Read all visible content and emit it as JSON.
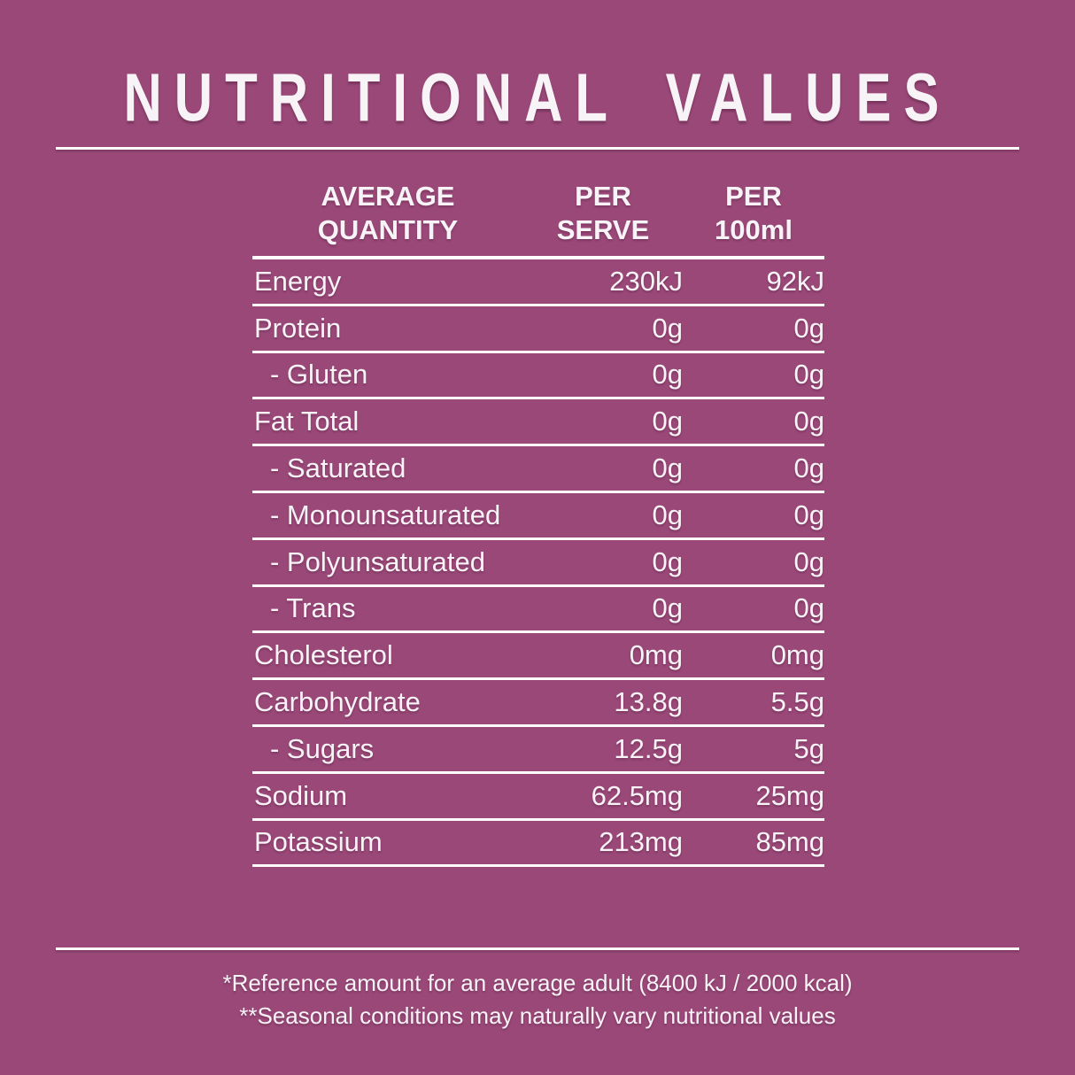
{
  "colors": {
    "background": "#9a4878",
    "text": "#f8f3f6",
    "line": "#ffffff"
  },
  "title": "NUTRITIONAL VALUES",
  "table": {
    "headers": {
      "col1_line1": "AVERAGE",
      "col1_line2": "QUANTITY",
      "col2_line1": "PER",
      "col2_line2": "SERVE",
      "col3_line1": "PER",
      "col3_line2": "100ml"
    },
    "rows": [
      {
        "label": "Energy",
        "per_serve": "230kJ",
        "per_100ml": "92kJ",
        "indent": false
      },
      {
        "label": "Protein",
        "per_serve": "0g",
        "per_100ml": "0g",
        "indent": false
      },
      {
        "label": "- Gluten",
        "per_serve": "0g",
        "per_100ml": "0g",
        "indent": true
      },
      {
        "label": "Fat Total",
        "per_serve": "0g",
        "per_100ml": "0g",
        "indent": false
      },
      {
        "label": "- Saturated",
        "per_serve": "0g",
        "per_100ml": "0g",
        "indent": true
      },
      {
        "label": "- Monounsaturated",
        "per_serve": "0g",
        "per_100ml": "0g",
        "indent": true
      },
      {
        "label": "- Polyunsaturated",
        "per_serve": "0g",
        "per_100ml": "0g",
        "indent": true
      },
      {
        "label": "- Trans",
        "per_serve": "0g",
        "per_100ml": "0g",
        "indent": true
      },
      {
        "label": "Cholesterol",
        "per_serve": "0mg",
        "per_100ml": "0mg",
        "indent": false
      },
      {
        "label": "Carbohydrate",
        "per_serve": "13.8g",
        "per_100ml": "5.5g",
        "indent": false
      },
      {
        "label": "- Sugars",
        "per_serve": "12.5g",
        "per_100ml": "5g",
        "indent": true
      },
      {
        "label": "Sodium",
        "per_serve": "62.5mg",
        "per_100ml": "25mg",
        "indent": false
      },
      {
        "label": "Potassium",
        "per_serve": "213mg",
        "per_100ml": "85mg",
        "indent": false
      }
    ]
  },
  "footnotes": {
    "line1": "*Reference amount for an average adult (8400 kJ / 2000 kcal)",
    "line2": "**Seasonal conditions may naturally vary nutritional values"
  }
}
